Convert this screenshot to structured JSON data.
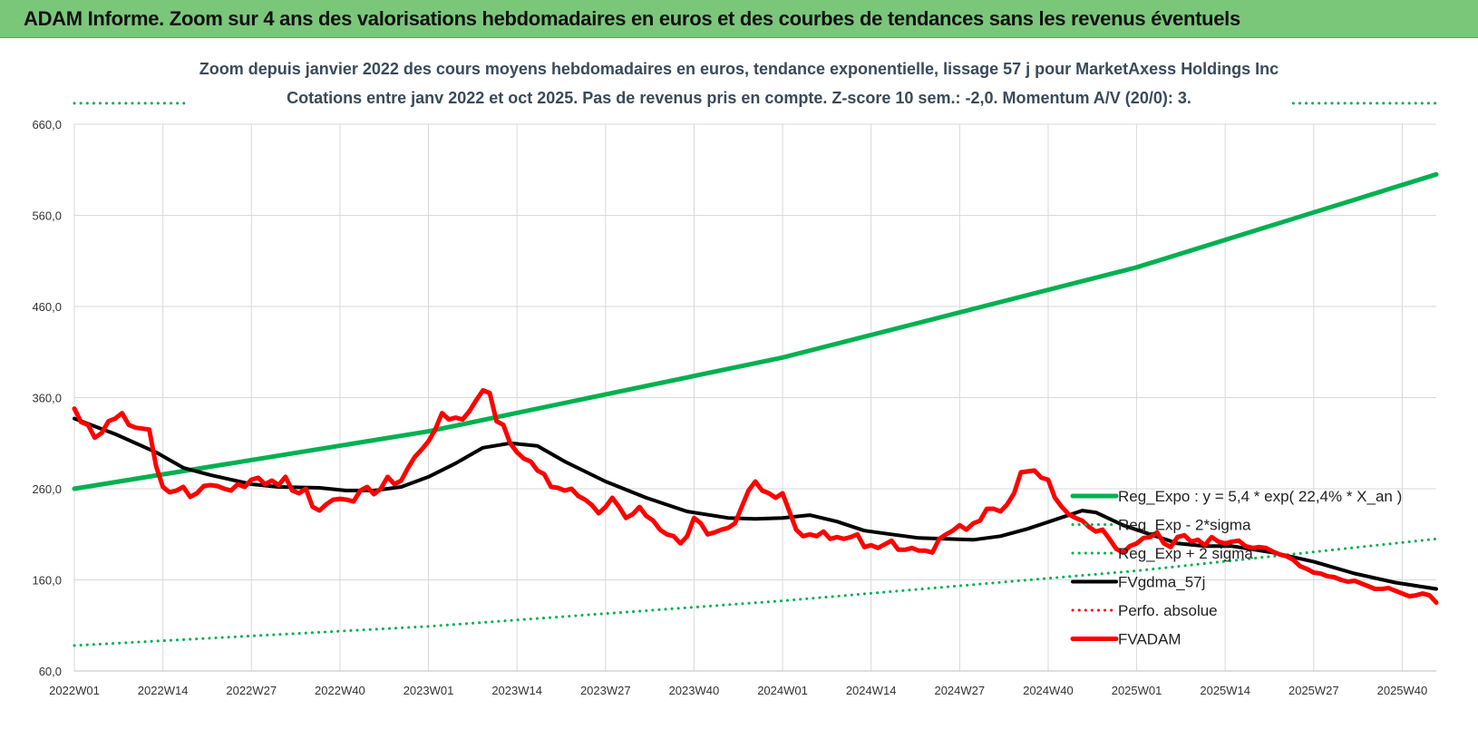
{
  "page": {
    "title": "ADAM Informe. Zoom sur 4 ans des valorisations hebdomadaires en euros et des courbes de tendances sans les revenus éventuels",
    "title_bg": "#7ac77a"
  },
  "chart_data": {
    "type": "line",
    "title": "Zoom depuis janvier 2022 des cours moyens hebdomadaires en euros, tendance exponentielle, lissage 57 j pour MarketAxess Holdings Inc",
    "subtitle": "Cotations entre janv 2022 et oct 2025. Pas de revenus pris en compte. Z-score 10 sem.: -2,0. Momentum A/V (20/0): 3.",
    "ylim": [
      60,
      660
    ],
    "yticks": [
      "660,0",
      "560,0",
      "460,0",
      "360,0",
      "260,0",
      "160,0",
      "60,0"
    ],
    "ytick_values": [
      660,
      560,
      460,
      360,
      260,
      160,
      60
    ],
    "xticks": [
      "2022W01",
      "2022W14",
      "2022W27",
      "2022W40",
      "2023W01",
      "2023W14",
      "2023W27",
      "2023W40",
      "2024W01",
      "2024W14",
      "2024W27",
      "2024W40",
      "2025W01",
      "2025W14",
      "2025W27",
      "2025W40"
    ],
    "xtick_weeks": [
      0,
      13,
      26,
      39,
      52,
      65,
      78,
      91,
      104,
      117,
      130,
      143,
      156,
      169,
      182,
      195
    ],
    "n_weeks": 200,
    "grid": true,
    "legend_position": "right",
    "series": [
      {
        "name": "Reg_Expo : y = 5,4 * exp( 22,4% * X_an )",
        "color": "#00b050",
        "style": "solid",
        "width": 5,
        "x": [
          0,
          52,
          104,
          156,
          200
        ],
        "values": [
          260,
          323,
          404,
          503,
          605
        ]
      },
      {
        "name": "Reg_Exp - 2*sigma",
        "color": "#00b050",
        "style": "dotted",
        "width": 3,
        "x": [
          0,
          52,
          104,
          156,
          200
        ],
        "values": [
          88,
          109,
          137,
          170,
          205
        ]
      },
      {
        "name": "Reg_Exp + 2 sigma",
        "color": "#00b050",
        "style": "dotted",
        "width": 3,
        "x": [
          0,
          17,
          179,
          200
        ],
        "values": [
          683,
          683,
          683,
          683
        ]
      },
      {
        "name": "FVgdma_57j",
        "color": "#000000",
        "style": "solid",
        "width": 4,
        "x": [
          0,
          6,
          12,
          16,
          20,
          26,
          30,
          36,
          40,
          44,
          48,
          52,
          56,
          60,
          64,
          68,
          72,
          78,
          84,
          90,
          96,
          100,
          104,
          108,
          112,
          116,
          120,
          124,
          128,
          132,
          136,
          140,
          144,
          148,
          150,
          154,
          158,
          162,
          166,
          170,
          176,
          182,
          188,
          194,
          200
        ],
        "values": [
          337,
          320,
          300,
          283,
          275,
          265,
          262,
          261,
          258,
          258,
          262,
          273,
          288,
          305,
          310,
          307,
          290,
          268,
          250,
          235,
          228,
          227,
          228,
          231,
          224,
          214,
          210,
          206,
          205,
          204,
          208,
          216,
          226,
          236,
          234,
          220,
          210,
          200,
          197,
          197,
          190,
          180,
          167,
          157,
          150
        ]
      },
      {
        "name": "Perfo. absolue",
        "color": "#ff0000",
        "style": "dotted",
        "width": 3,
        "x": [],
        "values": []
      },
      {
        "name": "FVADAM",
        "color": "#ff0000",
        "style": "solid",
        "width": 5,
        "x": [
          0,
          1,
          2,
          3,
          4,
          5,
          6,
          7,
          8,
          9,
          10,
          11,
          12,
          13,
          14,
          15,
          16,
          17,
          18,
          19,
          20,
          21,
          22,
          23,
          24,
          25,
          26,
          27,
          28,
          29,
          30,
          31,
          32,
          33,
          34,
          35,
          36,
          37,
          38,
          39,
          40,
          41,
          42,
          43,
          44,
          45,
          46,
          47,
          48,
          49,
          50,
          51,
          52,
          53,
          54,
          55,
          56,
          57,
          58,
          59,
          60,
          61,
          62,
          63,
          64,
          65,
          66,
          67,
          68,
          69,
          70,
          71,
          72,
          73,
          74,
          75,
          76,
          77,
          78,
          79,
          80,
          81,
          82,
          83,
          84,
          85,
          86,
          87,
          88,
          89,
          90,
          91,
          92,
          93,
          94,
          95,
          96,
          97,
          98,
          99,
          100,
          101,
          102,
          103,
          104,
          105,
          106,
          107,
          108,
          109,
          110,
          111,
          112,
          113,
          114,
          115,
          116,
          117,
          118,
          119,
          120,
          121,
          122,
          123,
          124,
          125,
          126,
          127,
          128,
          129,
          130,
          131,
          132,
          133,
          134,
          135,
          136,
          137,
          138,
          139,
          140,
          141,
          142,
          143,
          144,
          145,
          146,
          147,
          148,
          149,
          150,
          151,
          152,
          153,
          154,
          155,
          156,
          157,
          158,
          159,
          160,
          161,
          162,
          163,
          164,
          165,
          166,
          167,
          168,
          169,
          170,
          171,
          172,
          173,
          174,
          175,
          176,
          177,
          178,
          179,
          180,
          181,
          182,
          183,
          184,
          185,
          186,
          187,
          188,
          189,
          190,
          191,
          192,
          193,
          194,
          195,
          196,
          197,
          198,
          199,
          200
        ],
        "values": [
          348,
          333,
          330,
          316,
          321,
          334,
          337,
          343,
          330,
          327,
          326,
          325,
          285,
          262,
          256,
          258,
          262,
          251,
          255,
          263,
          264,
          263,
          260,
          258,
          265,
          262,
          270,
          272,
          265,
          269,
          264,
          273,
          258,
          255,
          260,
          240,
          236,
          243,
          248,
          249,
          248,
          246,
          258,
          262,
          254,
          260,
          273,
          265,
          269,
          283,
          295,
          303,
          312,
          325,
          343,
          336,
          338,
          336,
          345,
          357,
          368,
          365,
          334,
          330,
          310,
          300,
          293,
          290,
          280,
          276,
          262,
          261,
          258,
          260,
          252,
          248,
          242,
          233,
          240,
          250,
          240,
          228,
          232,
          240,
          230,
          225,
          215,
          210,
          208,
          200,
          208,
          228,
          222,
          210,
          212,
          215,
          217,
          222,
          240,
          258,
          268,
          258,
          255,
          250,
          255,
          235,
          215,
          208,
          210,
          208,
          213,
          205,
          207,
          205,
          207,
          210,
          196,
          198,
          195,
          199,
          203,
          193,
          193,
          195,
          192,
          192,
          190,
          205,
          210,
          214,
          220,
          215,
          222,
          225,
          238,
          238,
          235,
          243,
          255,
          278,
          279,
          280,
          272,
          270,
          250,
          240,
          232,
          228,
          225,
          218,
          213,
          215,
          205,
          194,
          190,
          197,
          200,
          206,
          207,
          212,
          200,
          196,
          207,
          209,
          202,
          204,
          198,
          207,
          202,
          200,
          202,
          203,
          197,
          195,
          196,
          195,
          191,
          188,
          186,
          182,
          175,
          172,
          168,
          167,
          164,
          163,
          160,
          158,
          159,
          156,
          153,
          150,
          150,
          151,
          148,
          145,
          142,
          143,
          145,
          143,
          135
        ]
      }
    ]
  }
}
